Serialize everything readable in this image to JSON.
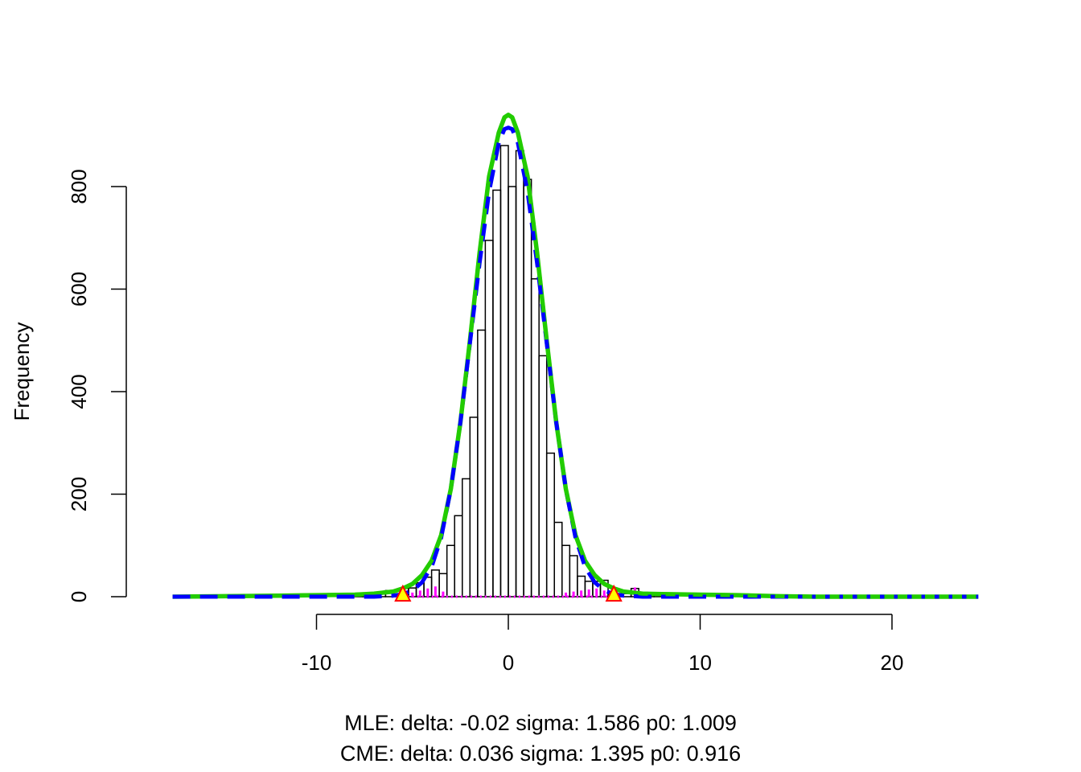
{
  "chart_data": {
    "type": "bar",
    "title": "",
    "xlabel": "",
    "ylabel": "Frequency",
    "xlim": [
      -17.5,
      24.5
    ],
    "ylim": [
      0,
      915
    ],
    "x_ticks": [
      -10,
      0,
      10,
      20
    ],
    "x_tick_labels": [
      "-10",
      "0",
      "10",
      "20"
    ],
    "y_ticks": [
      0,
      200,
      400,
      600,
      800
    ],
    "y_tick_labels": [
      "0",
      "200",
      "400",
      "600",
      "800"
    ],
    "bin_width": 0.4,
    "histogram": {
      "bin_start": [
        -8,
        -7.6,
        -7.2,
        -6.8,
        -6.4,
        -6,
        -5.6,
        -5.2,
        -4.8,
        -4.4,
        -4,
        -3.6,
        -3.2,
        -2.8,
        -2.4,
        -2,
        -1.6,
        -1.2,
        -0.8,
        -0.4,
        0,
        0.4,
        0.8,
        1.2,
        1.6,
        2,
        2.4,
        2.8,
        3.2,
        3.6,
        4,
        4.4,
        4.8,
        5.2,
        5.6,
        6,
        6.4,
        6.8,
        7.2,
        7.6
      ],
      "counts": [
        6,
        4,
        5,
        8,
        12,
        12,
        16,
        17,
        27,
        38,
        52,
        45,
        100,
        158,
        230,
        350,
        520,
        695,
        793,
        880,
        800,
        870,
        814,
        620,
        470,
        280,
        145,
        100,
        80,
        40,
        30,
        30,
        32,
        10,
        6,
        6,
        16,
        8,
        6,
        4
      ]
    },
    "secondary_histogram": {
      "color": "#ff00ff",
      "x": [
        -5.4,
        -5.0,
        -4.6,
        -4.2,
        -3.8,
        -3.4,
        3.0,
        3.4,
        3.8,
        4.2,
        4.6,
        5.0,
        5.4,
        6.6
      ],
      "counts": [
        6,
        8,
        12,
        16,
        20,
        10,
        8,
        10,
        12,
        14,
        16,
        12,
        6,
        18
      ]
    },
    "series": [
      {
        "name": "",
        "type": "line",
        "color": "#0000ff",
        "dash": "dashed",
        "x": [
          -17.5,
          -12,
          -10,
          -8,
          -7,
          -6,
          -5.5,
          -5,
          -4.5,
          -4,
          -3.5,
          -3,
          -2.5,
          -2,
          -1.5,
          -1,
          -0.5,
          -0.2,
          0,
          0.2,
          0.5,
          1,
          1.5,
          2,
          2.5,
          3,
          3.5,
          4,
          4.5,
          5,
          5.5,
          6,
          7,
          8,
          10,
          12,
          16,
          24.5
        ],
        "y": [
          0,
          0,
          0,
          0,
          0,
          2,
          5,
          12,
          28,
          58,
          115,
          210,
          340,
          495,
          650,
          790,
          885,
          912,
          915,
          912,
          885,
          790,
          650,
          495,
          340,
          210,
          115,
          58,
          28,
          12,
          5,
          2,
          0,
          0,
          0,
          0,
          0,
          0
        ]
      },
      {
        "name": "",
        "type": "line",
        "color": "#22cc00",
        "dash": "solid",
        "x": [
          -17.5,
          -12,
          -10,
          -8,
          -7,
          -6,
          -5.5,
          -5,
          -4.5,
          -4,
          -3.5,
          -3,
          -2.5,
          -2,
          -1.5,
          -1,
          -0.5,
          -0.2,
          0,
          0.2,
          0.5,
          1,
          1.5,
          2,
          2.5,
          3,
          3.5,
          4,
          4.5,
          5,
          5.5,
          6,
          7,
          8,
          10,
          12,
          14,
          16,
          24.5
        ],
        "y": [
          0,
          2,
          3,
          4,
          6,
          10,
          16,
          25,
          42,
          70,
          120,
          210,
          340,
          500,
          670,
          820,
          905,
          935,
          940,
          935,
          905,
          820,
          670,
          500,
          340,
          210,
          120,
          70,
          42,
          25,
          16,
          10,
          6,
          5,
          4,
          3,
          1,
          0,
          0
        ]
      }
    ],
    "markers": {
      "shape": "triangle",
      "fill": "#ffff00",
      "stroke": "#ff0000",
      "x": [
        -5.5,
        5.5
      ],
      "y": [
        3,
        3
      ]
    },
    "grid": false,
    "legend": "none",
    "captions": [
      "MLE: delta: -0.02 sigma: 1.586 p0: 1.009",
      "CME: delta: 0.036 sigma: 1.395 p0: 0.916"
    ]
  }
}
